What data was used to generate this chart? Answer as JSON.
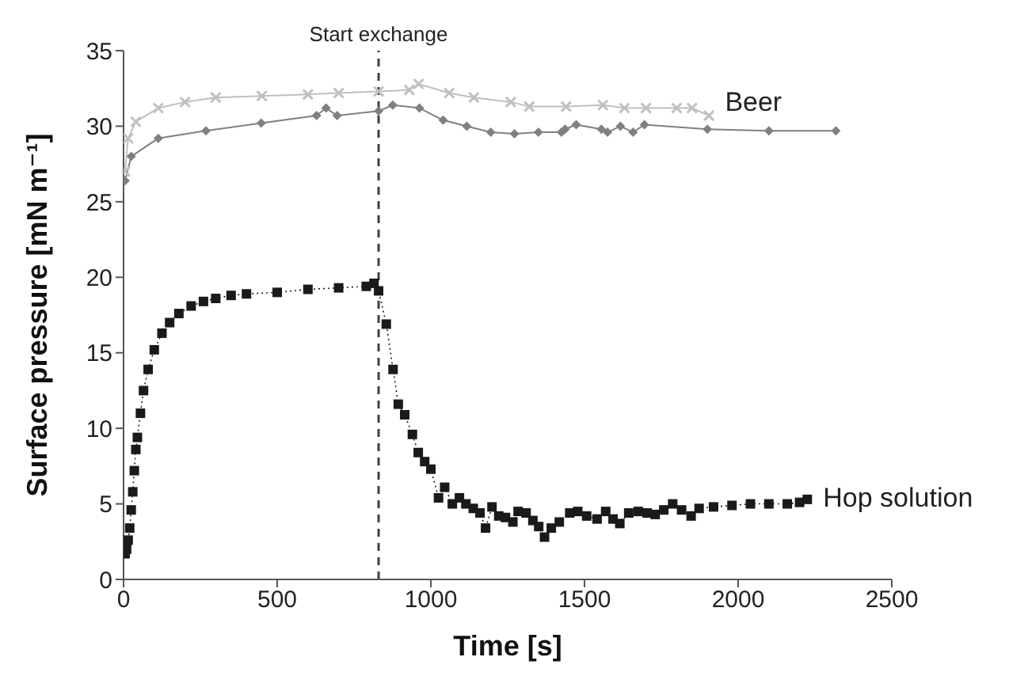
{
  "chart_data": {
    "type": "line",
    "xlabel": "Time  [s]",
    "ylabel": "Surface pressure  [mN m⁻¹]",
    "xlim": [
      0,
      2500
    ],
    "xticks": [
      0,
      500,
      1000,
      1500,
      2000,
      2500
    ],
    "ylim": [
      0,
      35
    ],
    "yticks": [
      0,
      5,
      10,
      15,
      20,
      25,
      30,
      35
    ],
    "grid": false,
    "legend": false,
    "ref_lines": [
      {
        "axis": "x",
        "value": 830,
        "label": "Start exchange",
        "color": "#404040",
        "line_style": "dashed"
      }
    ],
    "series": [
      {
        "color": "#c0c0c0",
        "marker": "cross",
        "line_style": "solid",
        "x": [
          5,
          15,
          40,
          113,
          200,
          300,
          450,
          600,
          700,
          830,
          930,
          960,
          1060,
          1140,
          1260,
          1320,
          1440,
          1560,
          1630,
          1700,
          1800,
          1850,
          1905
        ],
        "values": [
          27.0,
          29.2,
          30.3,
          31.2,
          31.6,
          31.9,
          32.0,
          32.1,
          32.2,
          32.3,
          32.4,
          32.8,
          32.2,
          31.9,
          31.6,
          31.3,
          31.3,
          31.4,
          31.2,
          31.2,
          31.2,
          31.2,
          30.7
        ]
      },
      {
        "name": "Beer",
        "color": "#808080",
        "marker": "diamond",
        "line_style": "solid",
        "x": [
          5,
          25,
          113,
          268,
          448,
          628,
          659,
          695,
          830,
          876,
          963,
          1040,
          1117,
          1195,
          1272,
          1350,
          1425,
          1437,
          1473,
          1555,
          1575,
          1617,
          1658,
          1695,
          1900,
          2100,
          2318
        ],
        "values": [
          26.4,
          28.0,
          29.2,
          29.7,
          30.2,
          30.7,
          31.2,
          30.7,
          31.0,
          31.4,
          31.2,
          30.4,
          30.0,
          29.6,
          29.5,
          29.6,
          29.6,
          29.8,
          30.1,
          29.8,
          29.6,
          30.0,
          29.6,
          30.1,
          29.8,
          29.7,
          29.7
        ]
      },
      {
        "name": "Hop solution",
        "color": "#1a1a1a",
        "marker": "square",
        "line_style": "dotted",
        "x": [
          5,
          10,
          15,
          20,
          25,
          30,
          35,
          40,
          45,
          55,
          65,
          80,
          100,
          125,
          150,
          180,
          220,
          260,
          300,
          350,
          400,
          500,
          600,
          700,
          790,
          815,
          830,
          855,
          877,
          894,
          915,
          940,
          959,
          980,
          1000,
          1025,
          1045,
          1070,
          1093,
          1114,
          1138,
          1160,
          1178,
          1199,
          1221,
          1243,
          1267,
          1284,
          1310,
          1332,
          1351,
          1370,
          1392,
          1418,
          1452,
          1478,
          1507,
          1541,
          1569,
          1593,
          1615,
          1644,
          1675,
          1704,
          1730,
          1758,
          1787,
          1816,
          1847,
          1873,
          1920,
          1980,
          2040,
          2100,
          2160,
          2200,
          2225
        ],
        "values": [
          1.7,
          2.0,
          2.6,
          3.4,
          4.6,
          5.8,
          7.2,
          8.6,
          9.4,
          11.0,
          12.5,
          13.9,
          15.2,
          16.3,
          17.0,
          17.6,
          18.1,
          18.4,
          18.6,
          18.8,
          18.9,
          19.0,
          19.2,
          19.3,
          19.4,
          19.6,
          19.1,
          16.9,
          13.9,
          11.6,
          10.9,
          9.6,
          8.4,
          7.8,
          7.3,
          5.4,
          6.1,
          5.0,
          5.4,
          5.0,
          4.7,
          4.4,
          3.4,
          4.8,
          4.2,
          4.1,
          3.8,
          4.5,
          4.4,
          3.9,
          3.5,
          2.8,
          3.4,
          3.8,
          4.4,
          4.5,
          4.2,
          4.0,
          4.5,
          4.0,
          3.7,
          4.4,
          4.5,
          4.4,
          4.3,
          4.6,
          5.0,
          4.6,
          4.2,
          4.7,
          4.8,
          4.9,
          5.0,
          5.0,
          5.0,
          5.1,
          5.3
        ]
      }
    ]
  }
}
